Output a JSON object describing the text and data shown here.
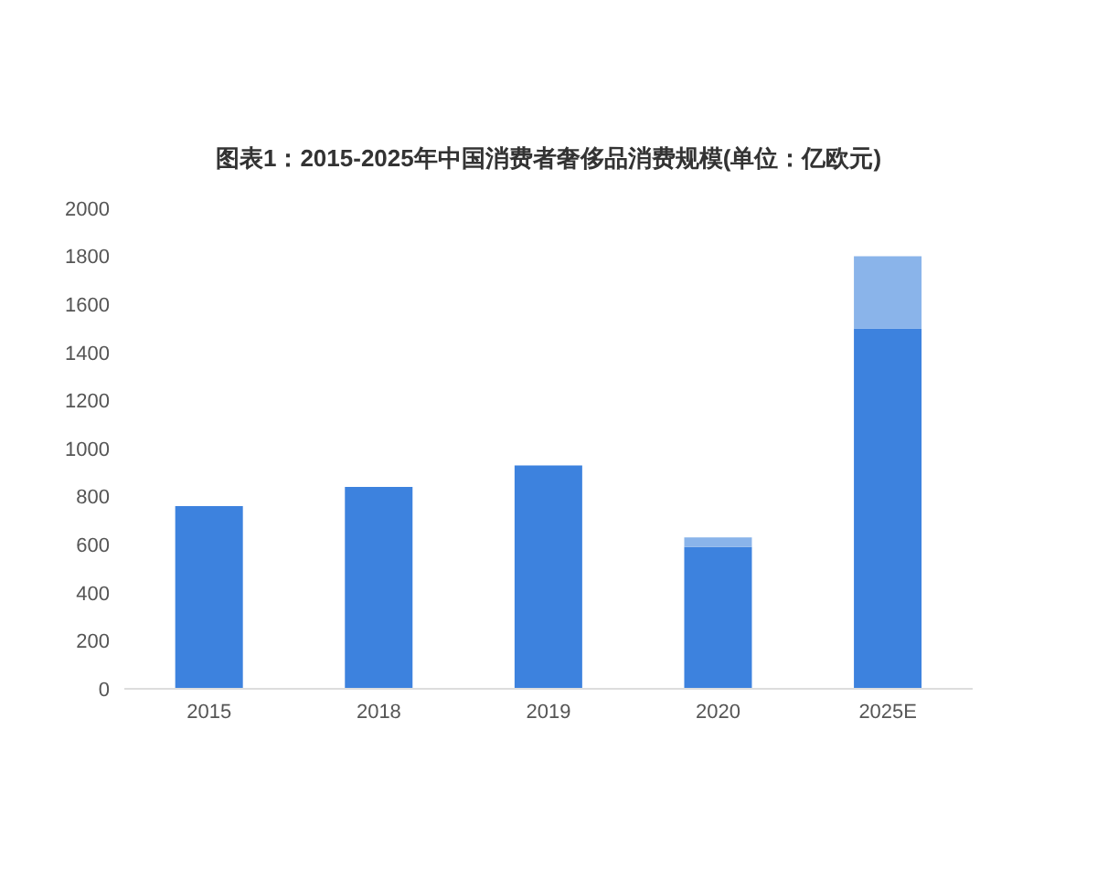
{
  "chart_data": {
    "type": "bar",
    "title": "图表1：2015-2025年中国消费者奢侈品消费规模(单位：亿欧元)",
    "categories": [
      "2015",
      "2018",
      "2019",
      "2020",
      "2025E"
    ],
    "stacked": true,
    "series": [
      {
        "color": "#3d82de",
        "values": [
          760,
          840,
          930,
          590,
          1500
        ]
      },
      {
        "color": "#8ab4ea",
        "values": [
          null,
          null,
          null,
          40,
          300
        ]
      }
    ],
    "ylim": [
      0,
      2000
    ],
    "yticks": [
      0,
      200,
      400,
      600,
      800,
      1000,
      1200,
      1400,
      1600,
      1800,
      2000
    ],
    "grid": false
  }
}
